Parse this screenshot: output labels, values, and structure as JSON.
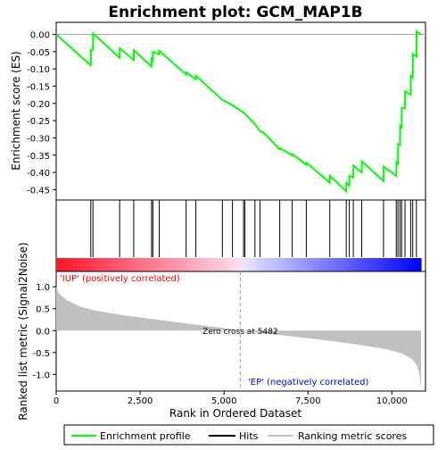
{
  "chart_data": {
    "type": "line",
    "title": "Enrichment plot: GCM_MAP1B",
    "es_panel": {
      "ylabel": "Enrichment score (ES)",
      "ylim": [
        -0.48,
        0.035
      ],
      "yticks": [
        0.0,
        -0.05,
        -0.1,
        -0.15,
        -0.2,
        -0.25,
        -0.3,
        -0.35,
        -0.4,
        -0.45
      ],
      "ytick_labels": [
        "0.00",
        "-0.05",
        "-0.10",
        "-0.15",
        "-0.20",
        "-0.25",
        "-0.30",
        "-0.35",
        "-0.40",
        "-0.45"
      ],
      "series_color": "#00ff00",
      "curve": [
        [
          0,
          0.0
        ],
        [
          1030,
          -0.09
        ],
        [
          1035,
          -0.045
        ],
        [
          1095,
          -0.045
        ],
        [
          1100,
          0.003
        ],
        [
          1890,
          -0.068
        ],
        [
          1895,
          -0.04
        ],
        [
          2310,
          -0.074
        ],
        [
          2315,
          -0.046
        ],
        [
          2840,
          -0.093
        ],
        [
          2845,
          -0.07
        ],
        [
          2880,
          -0.075
        ],
        [
          2885,
          -0.05
        ],
        [
          3070,
          -0.058
        ],
        [
          3075,
          -0.048
        ],
        [
          3870,
          -0.116
        ],
        [
          3875,
          -0.11
        ],
        [
          4160,
          -0.13
        ],
        [
          4165,
          -0.12
        ],
        [
          4950,
          -0.19
        ],
        [
          5250,
          -0.205
        ],
        [
          5580,
          -0.227
        ],
        [
          5620,
          -0.23
        ],
        [
          5920,
          -0.26
        ],
        [
          6070,
          -0.28
        ],
        [
          6180,
          -0.285
        ],
        [
          6660,
          -0.333
        ],
        [
          6665,
          -0.33
        ],
        [
          7030,
          -0.35
        ],
        [
          7035,
          -0.347
        ],
        [
          7450,
          -0.378
        ],
        [
          7455,
          -0.372
        ],
        [
          8150,
          -0.43
        ],
        [
          8155,
          -0.41
        ],
        [
          8640,
          -0.455
        ],
        [
          8645,
          -0.43
        ],
        [
          8730,
          -0.438
        ],
        [
          8735,
          -0.41
        ],
        [
          8850,
          -0.415
        ],
        [
          8855,
          -0.38
        ],
        [
          9100,
          -0.4
        ],
        [
          9105,
          -0.368
        ],
        [
          9750,
          -0.425
        ],
        [
          9755,
          -0.383
        ],
        [
          10130,
          -0.41
        ],
        [
          10135,
          -0.37
        ],
        [
          10180,
          -0.375
        ],
        [
          10185,
          -0.318
        ],
        [
          10240,
          -0.32
        ],
        [
          10245,
          -0.265
        ],
        [
          10290,
          -0.27
        ],
        [
          10295,
          -0.213
        ],
        [
          10390,
          -0.215
        ],
        [
          10395,
          -0.165
        ],
        [
          10560,
          -0.175
        ],
        [
          10565,
          -0.12
        ],
        [
          10620,
          -0.125
        ],
        [
          10625,
          -0.057
        ],
        [
          10730,
          -0.065
        ],
        [
          10735,
          0.008
        ],
        [
          10870,
          0.0
        ]
      ],
      "hits": [
        1030,
        1095,
        1890,
        2310,
        2840,
        2880,
        3070,
        3870,
        4160,
        4950,
        5250,
        5580,
        5620,
        5920,
        6070,
        6660,
        7030,
        7450,
        8150,
        8640,
        8730,
        8850,
        9100,
        9750,
        10130,
        10180,
        10240,
        10290,
        10390,
        10560,
        10620,
        10730
      ]
    },
    "rank_panel": {
      "ylabel": "Ranked list metric (Signal2Noise)",
      "ylim": [
        -1.38,
        1.35
      ],
      "yticks": [
        1.0,
        0.5,
        0.0,
        -0.5,
        -1.0
      ],
      "ytick_labels": [
        "1.0",
        "0.5",
        "0.0",
        "-0.5",
        "-1.0"
      ],
      "fill_color": "#c0c0c0",
      "metric_curve": [
        [
          0,
          1.0
        ],
        [
          80,
          0.85
        ],
        [
          300,
          0.7
        ],
        [
          700,
          0.55
        ],
        [
          1200,
          0.45
        ],
        [
          2000,
          0.35
        ],
        [
          3000,
          0.25
        ],
        [
          4000,
          0.15
        ],
        [
          5000,
          0.06
        ],
        [
          5482,
          0.0
        ],
        [
          6000,
          -0.05
        ],
        [
          7000,
          -0.13
        ],
        [
          8000,
          -0.22
        ],
        [
          9000,
          -0.32
        ],
        [
          9800,
          -0.42
        ],
        [
          10300,
          -0.52
        ],
        [
          10600,
          -0.65
        ],
        [
          10750,
          -0.8
        ],
        [
          10820,
          -1.0
        ],
        [
          10870,
          -1.35
        ]
      ],
      "label_positive": "'IUP' (positively correlated)",
      "label_negative": "'EP' (negatively correlated)",
      "label_positive_color": "#ff0000",
      "label_negative_color": "#0000ff",
      "zero_cross_text": "Zero cross at 5482",
      "zero_cross_rank": 5482
    },
    "x_axis": {
      "label": "Rank in Ordered Dataset",
      "xlim": [
        0,
        11000
      ],
      "total": 10870,
      "xticks": [
        0,
        2500,
        5000,
        7500,
        10000
      ],
      "xtick_labels": [
        "0",
        "2,500",
        "5,000",
        "7,500",
        "10,000"
      ]
    },
    "legend": {
      "items": [
        {
          "label": "Enrichment profile",
          "color": "#00ff00"
        },
        {
          "label": "Hits",
          "color": "#000000"
        },
        {
          "label": "Ranking metric scores",
          "color": "#c0c0c0"
        }
      ]
    }
  }
}
